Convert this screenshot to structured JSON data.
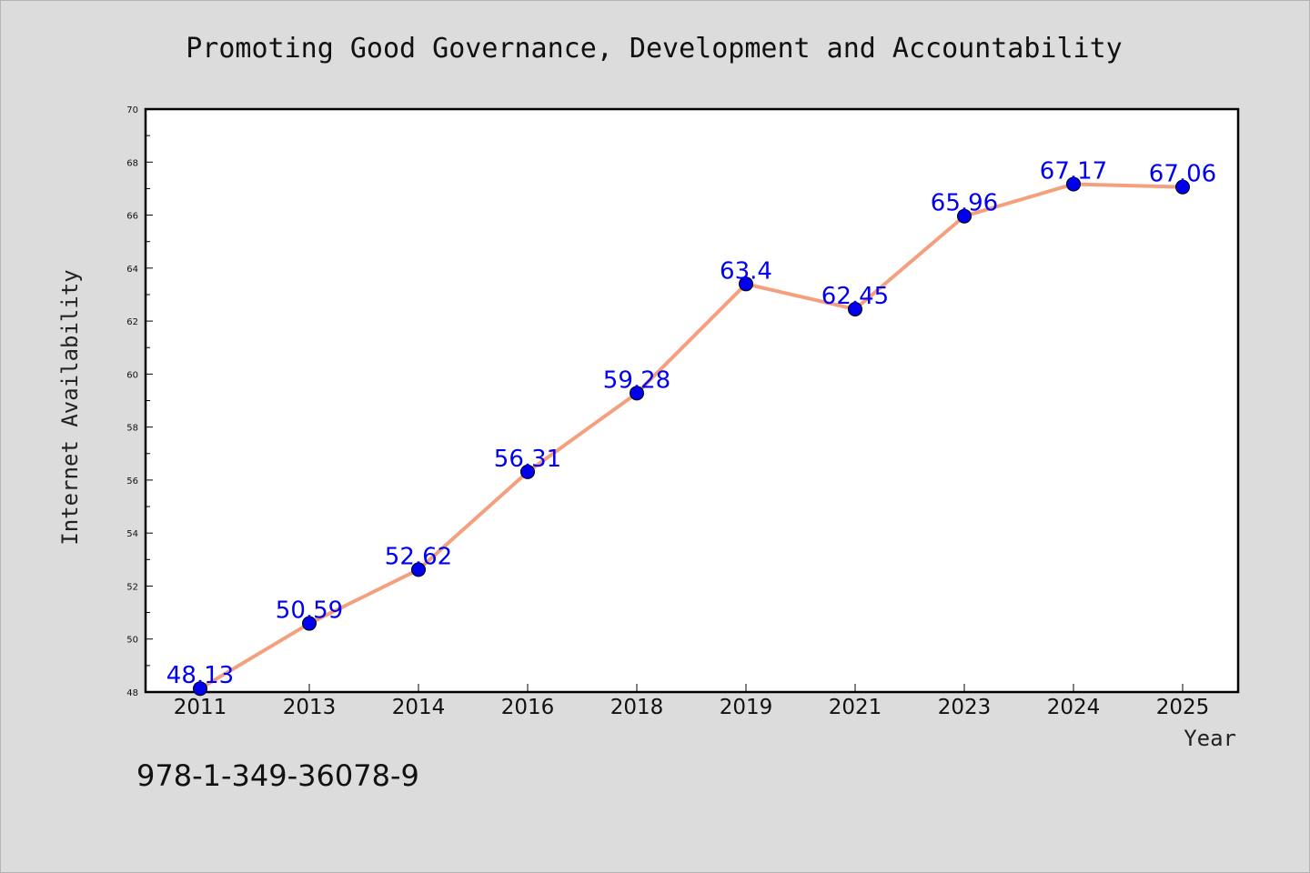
{
  "chart_data": {
    "type": "line",
    "title": "Promoting Good Governance, Development and Accountability",
    "xlabel": "Year",
    "ylabel": "Internet Availability",
    "categories": [
      "2011",
      "2013",
      "2014",
      "2016",
      "2018",
      "2019",
      "2021",
      "2023",
      "2024",
      "2025"
    ],
    "series": [
      {
        "values": [
          48.13,
          50.59,
          52.62,
          56.31,
          59.28,
          63.4,
          62.45,
          65.96,
          67.17,
          67.06
        ],
        "labels": [
          "48.13",
          "50.59",
          "52.62",
          "56.31",
          "59.28",
          "63.4",
          "62.45",
          "65.96",
          "67.17",
          "67.06"
        ],
        "line_color": "#f4a07f",
        "marker_color": "#0000ee"
      }
    ],
    "ylim": [
      48,
      70
    ],
    "yticks": [
      "48",
      "50",
      "52",
      "54",
      "56",
      "58",
      "60",
      "62",
      "64",
      "66",
      "68",
      "70"
    ],
    "grid": false,
    "legend": "none",
    "label_color": "#0000ee"
  },
  "footer": {
    "isbn": "978-1-349-36078-9"
  }
}
